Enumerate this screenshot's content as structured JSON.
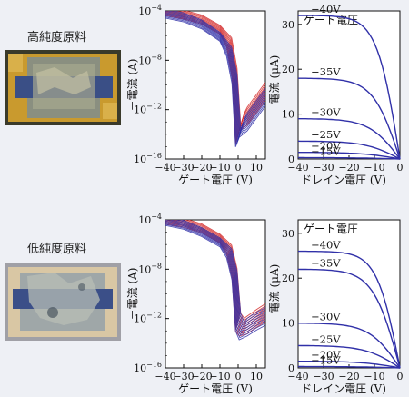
{
  "samples": [
    {
      "label": "高純度原料"
    },
    {
      "label": "低純度原料"
    }
  ],
  "colors": {
    "red": "#d42a2a",
    "blue": "#3030a8",
    "plotbg": "#ffffff",
    "board": "#c99a2e",
    "chip": "#9aa3a4"
  },
  "chart_data": [
    {
      "type": "line",
      "panel": "transfer-high",
      "ylabel": "－電流 (A)",
      "xlabel": "ゲート電圧 (V)",
      "xlim": [
        -40,
        15
      ],
      "xticks": [
        "−40",
        "−30",
        "−20",
        "−10",
        "0",
        "10"
      ],
      "yscale": "log",
      "ylim": [
        1e-16,
        0.0001
      ],
      "yticks": [
        {
          "base": "10",
          "exp": "−4"
        },
        {
          "base": "10",
          "exp": "−8"
        },
        {
          "base": "10",
          "exp": "−12"
        },
        {
          "base": "10",
          "exp": "−16"
        }
      ],
      "series": [
        {
          "color": "red",
          "x": [
            -40,
            -30,
            -20,
            -10,
            -5,
            -2,
            0,
            2,
            5,
            10,
            15
          ],
          "y": [
            0.0001,
            5e-05,
            2e-05,
            3e-06,
            3e-07,
            1e-09,
            1e-14,
            1e-13,
            3e-13,
            3e-12,
            3e-11
          ]
        },
        {
          "color": "blue",
          "x": [
            -40,
            -30,
            -20,
            -10,
            -5,
            -2,
            0,
            2,
            5,
            10,
            15
          ],
          "y": [
            6e-05,
            3e-05,
            8e-06,
            8e-07,
            5e-08,
            3e-10,
            5e-15,
            3e-14,
            1e-13,
            1e-12,
            1e-11
          ]
        }
      ]
    },
    {
      "type": "line",
      "panel": "output-high",
      "ylabel": "－電流 (μA)",
      "xlabel": "ドレイン電圧 (V)",
      "xlim": [
        -40,
        0
      ],
      "ylim": [
        0,
        33
      ],
      "xticks": [
        "−40",
        "−30",
        "−20",
        "−10",
        "0"
      ],
      "yticks": [
        "0",
        "10",
        "20",
        "30"
      ],
      "legend_title": "ゲート電圧",
      "series": [
        {
          "name": "−40V",
          "sat": 32
        },
        {
          "name": "−35V",
          "sat": 18
        },
        {
          "name": "−30V",
          "sat": 9
        },
        {
          "name": "−25V",
          "sat": 4
        },
        {
          "name": "−20V",
          "sat": 1.5
        },
        {
          "name": "−15V",
          "sat": 0.3
        }
      ]
    },
    {
      "type": "line",
      "panel": "transfer-low",
      "ylabel": "－電流 (A)",
      "xlabel": "ゲート電圧 (V)",
      "xlim": [
        -40,
        15
      ],
      "xticks": [
        "−40",
        "−30",
        "−20",
        "−10",
        "0",
        "10"
      ],
      "yscale": "log",
      "ylim": [
        1e-16,
        0.0001
      ],
      "yticks": [
        {
          "base": "10",
          "exp": "−4"
        },
        {
          "base": "10",
          "exp": "−8"
        },
        {
          "base": "10",
          "exp": "−12"
        },
        {
          "base": "10",
          "exp": "−16"
        }
      ],
      "series": [
        {
          "color": "red",
          "x": [
            -40,
            -30,
            -20,
            -10,
            -5,
            -2,
            0,
            2,
            5,
            10,
            15
          ],
          "y": [
            0.0001,
            6e-05,
            2e-05,
            3e-06,
            4e-07,
            5e-09,
            5e-13,
            2e-13,
            3e-13,
            1e-12,
            3e-12
          ]
        },
        {
          "color": "blue",
          "x": [
            -40,
            -30,
            -20,
            -10,
            -5,
            -2,
            0,
            2,
            5,
            10,
            15
          ],
          "y": [
            8e-05,
            4e-05,
            1e-05,
            1.5e-06,
            2e-07,
            3e-09,
            5e-13,
            1e-13,
            2e-13,
            6e-13,
            1.5e-12
          ]
        }
      ]
    },
    {
      "type": "line",
      "panel": "output-low",
      "ylabel": "－電流 (μA)",
      "xlabel": "ドレイン電圧 (V)",
      "xlim": [
        -40,
        0
      ],
      "ylim": [
        0,
        33
      ],
      "xticks": [
        "−40",
        "−30",
        "−20",
        "−10",
        "0"
      ],
      "yticks": [
        "0",
        "10",
        "20",
        "30"
      ],
      "legend_title": "ゲート電圧",
      "series": [
        {
          "name": "−40V",
          "sat": 26
        },
        {
          "name": "−35V",
          "sat": 22
        },
        {
          "name": "−30V",
          "sat": 10
        },
        {
          "name": "−25V",
          "sat": 5
        },
        {
          "name": "−20V",
          "sat": 1.5
        },
        {
          "name": "−15V",
          "sat": 0.3
        }
      ]
    }
  ]
}
